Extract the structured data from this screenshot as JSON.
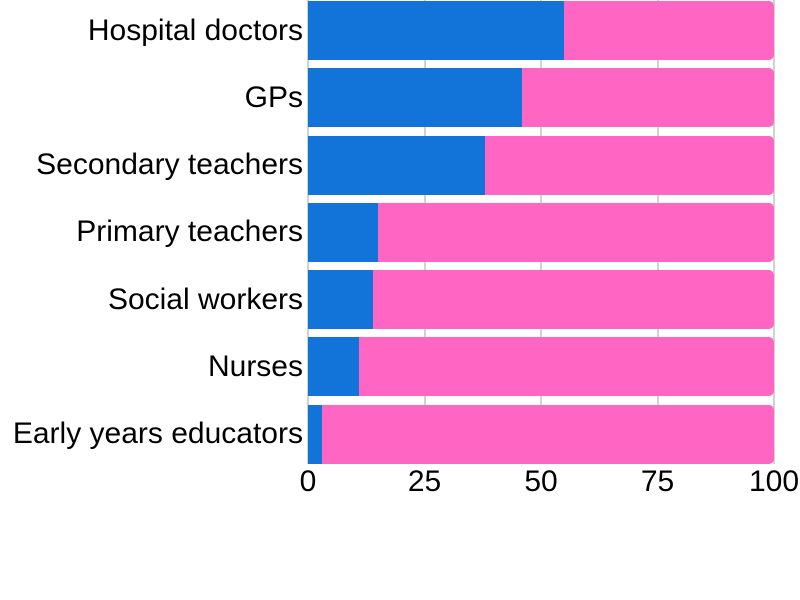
{
  "chart_data": {
    "type": "bar",
    "orientation": "horizontal",
    "stacked": true,
    "title": "",
    "xlabel": "",
    "ylabel": "",
    "xlim": [
      0,
      100
    ],
    "xticks": [
      "0",
      "25",
      "50",
      "75",
      "100"
    ],
    "xtick_values": [
      0,
      25,
      50,
      75,
      100
    ],
    "grid": true,
    "legend": "none",
    "categories": [
      "Hospital doctors",
      "GPs",
      "Secondary teachers",
      "Primary teachers",
      "Social workers",
      "Nurses",
      "Early years educators"
    ],
    "series": [
      {
        "name": "blue",
        "color": "#1273d9",
        "values": [
          55,
          46,
          38,
          15,
          14,
          11,
          3
        ]
      },
      {
        "name": "pink",
        "color": "#ff66c4",
        "values": [
          45,
          54,
          62,
          85,
          86,
          89,
          97
        ]
      }
    ]
  },
  "colors": {
    "background": "#ffffff",
    "gridline": "#d2d2d2",
    "text": "#000000",
    "bar_blue": "#1273d9",
    "bar_pink": "#ff66c4"
  }
}
